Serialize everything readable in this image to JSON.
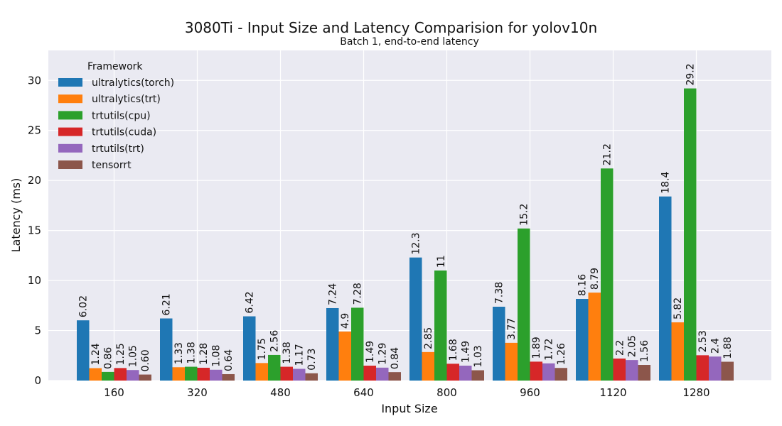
{
  "chart_data": {
    "type": "bar",
    "title": "3080Ti - Input Size and Latency Comparision for yolov10n",
    "subtitle": "Batch 1, end-to-end latency",
    "xlabel": "Input Size",
    "ylabel": "Latency (ms)",
    "ylim": [
      0,
      33
    ],
    "yticks": [
      "0",
      "5",
      "10",
      "15",
      "20",
      "25",
      "30"
    ],
    "grid": true,
    "legend_title": "Framework",
    "legend_position": "top-left",
    "background": "#eaeaf2",
    "categories": [
      "160",
      "320",
      "480",
      "640",
      "800",
      "960",
      "1120",
      "1280"
    ],
    "series": [
      {
        "name": "ultralytics(torch)",
        "color": "#1f77b4",
        "values": [
          6.02,
          6.21,
          6.42,
          7.24,
          12.3,
          7.38,
          8.16,
          18.4
        ],
        "labels": [
          "6.02",
          "6.21",
          "6.42",
          "7.24",
          "12.3",
          "7.38",
          "8.16",
          "18.4"
        ]
      },
      {
        "name": "ultralytics(trt)",
        "color": "#ff7f0e",
        "values": [
          1.24,
          1.33,
          1.75,
          4.9,
          2.85,
          3.77,
          8.79,
          5.82
        ],
        "labels": [
          "1.24",
          "1.33",
          "1.75",
          "4.9",
          "2.85",
          "3.77",
          "8.79",
          "5.82"
        ]
      },
      {
        "name": "trtutils(cpu)",
        "color": "#2ca02c",
        "values": [
          0.86,
          1.38,
          2.56,
          7.28,
          11,
          15.2,
          21.2,
          29.2
        ],
        "labels": [
          "0.86",
          "1.38",
          "2.56",
          "7.28",
          "11",
          "15.2",
          "21.2",
          "29.2"
        ]
      },
      {
        "name": "trtutils(cuda)",
        "color": "#d62728",
        "values": [
          1.25,
          1.28,
          1.38,
          1.49,
          1.68,
          1.89,
          2.2,
          2.53
        ],
        "labels": [
          "1.25",
          "1.28",
          "1.38",
          "1.49",
          "1.68",
          "1.89",
          "2.2",
          "2.53"
        ]
      },
      {
        "name": "trtutils(trt)",
        "color": "#9467bd",
        "values": [
          1.05,
          1.08,
          1.17,
          1.29,
          1.49,
          1.72,
          2.05,
          2.4
        ],
        "labels": [
          "1.05",
          "1.08",
          "1.17",
          "1.29",
          "1.49",
          "1.72",
          "2.05",
          "2.4"
        ]
      },
      {
        "name": "tensorrt",
        "color": "#8c564b",
        "values": [
          0.6,
          0.64,
          0.73,
          0.84,
          1.03,
          1.26,
          1.56,
          1.88
        ],
        "labels": [
          "0.60",
          "0.64",
          "0.73",
          "0.84",
          "1.03",
          "1.26",
          "1.56",
          "1.88"
        ]
      }
    ]
  }
}
